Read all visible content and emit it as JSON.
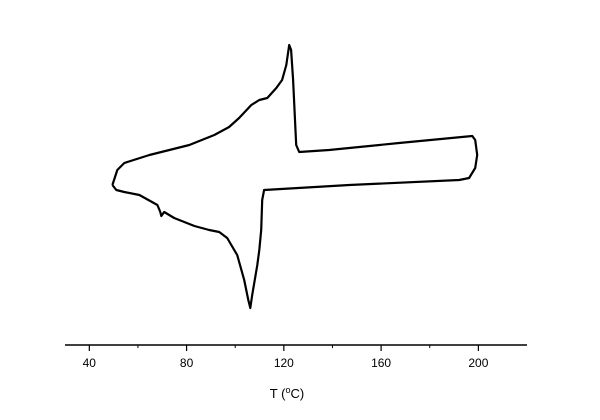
{
  "chart_data": {
    "type": "line",
    "xlabel": [
      "T (",
      "o",
      "C)"
    ],
    "series": [
      {
        "color": "#000000",
        "x": [
          49.5,
          51.5,
          54.4,
          64.7,
          81.1,
          91.4,
          97.5,
          101.6,
          106.6,
          109.9,
          113.2,
          116.9,
          119.3,
          121.0,
          122.2,
          123.0,
          123.8,
          124.6,
          125.1,
          126.3,
          138.6,
          167.4,
          197.5,
          198.7,
          199.5,
          198.7,
          196.2,
          192.1,
          146.9,
          111.9,
          111.1,
          110.7,
          109.9,
          109.1,
          108.2,
          107.0,
          106.2,
          105.4,
          103.7,
          100.8,
          96.7,
          93.4,
          89.3,
          83.2,
          74.9,
          70.8,
          69.6,
          69.2,
          68.0,
          60.6,
          54.4,
          51.1,
          49.5
        ],
        "values": [
          160,
          175,
          182,
          190,
          200,
          210,
          218,
          227,
          240,
          245,
          247,
          257,
          265,
          280,
          300,
          295,
          265,
          225,
          200,
          193,
          195,
          202,
          209,
          205,
          190,
          177,
          167,
          165,
          160,
          155,
          145,
          115,
          95,
          80,
          67,
          50,
          37,
          45,
          65,
          90,
          107,
          113,
          115,
          119,
          127,
          133,
          129,
          133,
          140,
          150,
          153,
          155,
          160
        ]
      }
    ],
    "xlim": [
      30,
      220
    ],
    "xticks": [
      40,
      80,
      120,
      160,
      200
    ],
    "minor_xticks": [
      60,
      100,
      140,
      180
    ],
    "ylim": [
      0,
      345
    ]
  }
}
